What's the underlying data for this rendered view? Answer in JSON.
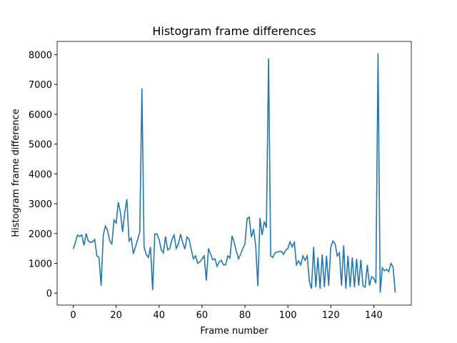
{
  "chart_data": {
    "type": "line",
    "title": "Histogram frame differences",
    "x_label": "Frame number",
    "y_label": "Histogram frame difference",
    "x": [
      0,
      1,
      2,
      3,
      4,
      5,
      6,
      7,
      8,
      9,
      10,
      11,
      12,
      13,
      14,
      15,
      16,
      17,
      18,
      19,
      20,
      21,
      22,
      23,
      24,
      25,
      26,
      27,
      28,
      29,
      30,
      31,
      32,
      33,
      34,
      35,
      36,
      37,
      38,
      39,
      40,
      41,
      42,
      43,
      44,
      45,
      46,
      47,
      48,
      49,
      50,
      51,
      52,
      53,
      54,
      55,
      56,
      57,
      58,
      59,
      60,
      61,
      62,
      63,
      64,
      65,
      66,
      67,
      68,
      69,
      70,
      71,
      72,
      73,
      74,
      75,
      76,
      77,
      78,
      79,
      80,
      81,
      82,
      83,
      84,
      85,
      86,
      87,
      88,
      89,
      90,
      91,
      92,
      93,
      94,
      95,
      96,
      97,
      98,
      99,
      100,
      101,
      102,
      103,
      104,
      105,
      106,
      107,
      108,
      109,
      110,
      111,
      112,
      113,
      114,
      115,
      116,
      117,
      118,
      119,
      120,
      121,
      122,
      123,
      124,
      125,
      126,
      127,
      128,
      129,
      130,
      131,
      132,
      133,
      134,
      135,
      136,
      137,
      138,
      139,
      140,
      141,
      142,
      143,
      144,
      145,
      146,
      147,
      148,
      149,
      150
    ],
    "series": [
      {
        "name": "Histogram frame difference",
        "color": "#1f77b4",
        "values": [
          1480,
          1700,
          1950,
          1900,
          1950,
          1600,
          2000,
          1750,
          1700,
          1720,
          1800,
          1250,
          1200,
          250,
          1950,
          2250,
          2100,
          1750,
          1650,
          2450,
          2350,
          3050,
          2700,
          2050,
          2700,
          3150,
          1750,
          1850,
          1320,
          1550,
          1800,
          2050,
          6870,
          1550,
          1300,
          1200,
          1550,
          100,
          1980,
          1990,
          1800,
          1450,
          1350,
          1900,
          1450,
          1500,
          1800,
          1950,
          1500,
          1650,
          1980,
          1700,
          1480,
          1880,
          1800,
          1450,
          1150,
          1250,
          1000,
          1050,
          1150,
          1250,
          420,
          1500,
          1300,
          1120,
          1150,
          900,
          1050,
          1100,
          950,
          950,
          1250,
          1180,
          1920,
          1700,
          1400,
          1150,
          1300,
          1500,
          1650,
          2500,
          2550,
          1880,
          2150,
          1600,
          230,
          2520,
          1950,
          2400,
          2200,
          7870,
          1250,
          1200,
          1350,
          1380,
          1400,
          1400,
          1300,
          1450,
          1500,
          1720,
          1550,
          1700,
          950,
          1080,
          950,
          1250,
          1100,
          1250,
          400,
          150,
          1550,
          200,
          1200,
          150,
          1300,
          200,
          1250,
          250,
          1550,
          1750,
          1650,
          1250,
          1350,
          250,
          1600,
          150,
          1250,
          200,
          1200,
          200,
          1150,
          250,
          1120,
          250,
          200,
          950,
          250,
          550,
          500,
          330,
          8040,
          20,
          850,
          750,
          800,
          720,
          1000,
          880,
          20
        ]
      }
    ],
    "xlim": [
      -7.5,
      157.5
    ],
    "ylim": [
      -402,
      8442
    ],
    "xticks": [
      0,
      20,
      40,
      60,
      80,
      100,
      120,
      140
    ],
    "yticks": [
      0,
      1000,
      2000,
      3000,
      4000,
      5000,
      6000,
      7000,
      8000
    ]
  }
}
